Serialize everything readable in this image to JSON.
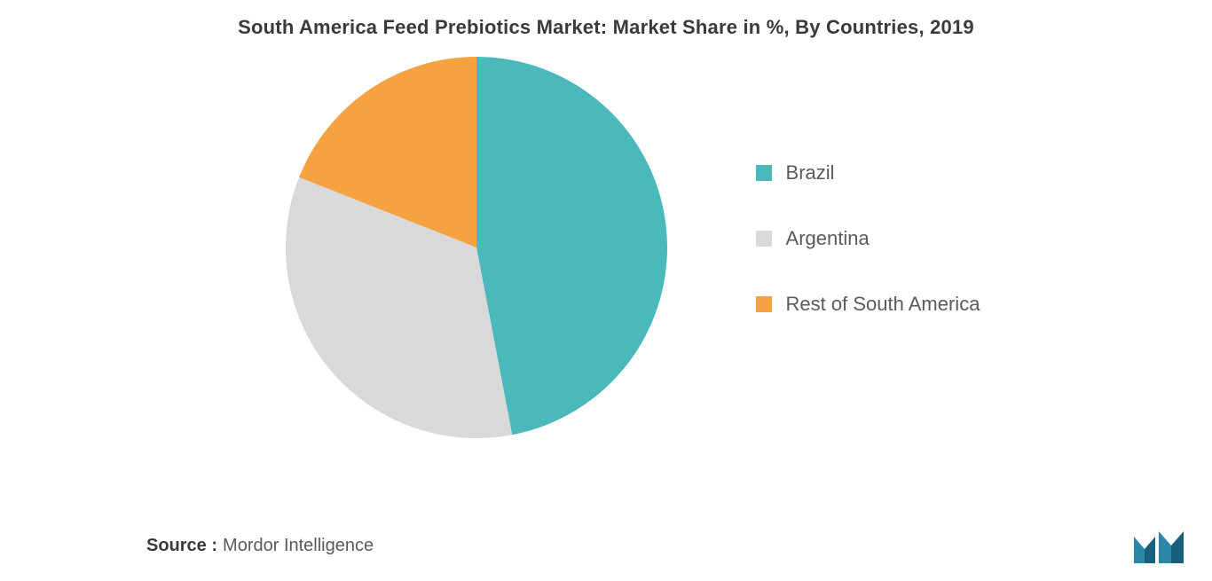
{
  "chart": {
    "type": "pie",
    "title": "South America Feed Prebiotics Market: Market Share in %, By Countries, 2019",
    "title_fontsize": 22,
    "title_color": "#3a3a3a",
    "background_color": "#ffffff",
    "pie_radius": 215,
    "slices": [
      {
        "label": "Brazil",
        "value": 47,
        "color": "#4bb8bb"
      },
      {
        "label": "Argentina",
        "value": 34,
        "color": "#d9d9d9"
      },
      {
        "label": "Rest of South America",
        "value": 19,
        "color": "#f5a243"
      }
    ],
    "legend": {
      "position": "right",
      "fontsize": 22,
      "text_color": "#5a5a5a",
      "swatch_size": 18,
      "gap": 48
    }
  },
  "footer": {
    "source_label": "Source :",
    "source_value": "Mordor Intelligence",
    "label_fontsize": 20,
    "label_color": "#3a3a3a",
    "value_color": "#5a5a5a"
  },
  "logo": {
    "name": "mordor-intelligence-logo",
    "primary_color": "#2a87a8",
    "secondary_color": "#1a5f7a"
  }
}
